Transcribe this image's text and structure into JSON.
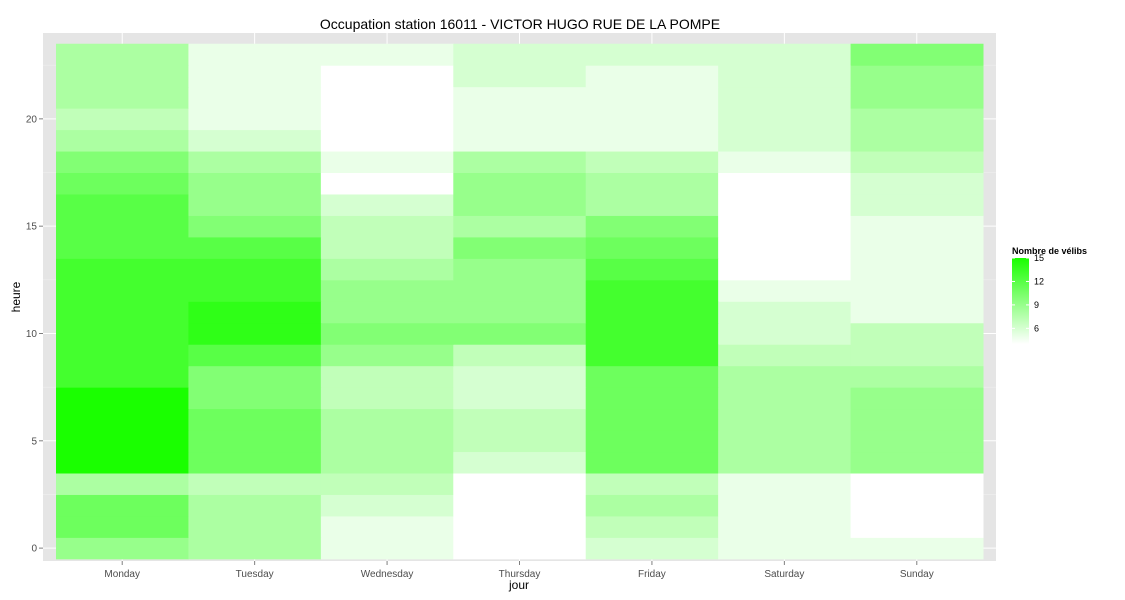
{
  "chart_data": {
    "type": "heatmap",
    "title": "Occupation station 16011 - VICTOR HUGO RUE DE LA POMPE",
    "xlabel": "jour",
    "ylabel": "heure",
    "x_categories": [
      "Monday",
      "Tuesday",
      "Wednesday",
      "Thursday",
      "Friday",
      "Saturday",
      "Sunday"
    ],
    "y_values": [
      0,
      1,
      2,
      3,
      4,
      5,
      6,
      7,
      8,
      9,
      10,
      11,
      12,
      13,
      14,
      15,
      16,
      17,
      18,
      19,
      20,
      21,
      22,
      23
    ],
    "y_ticks": [
      0,
      5,
      10,
      15,
      20
    ],
    "ylim": [
      -0.6,
      24
    ],
    "grid": true,
    "values": [
      [
        9,
        8,
        5,
        4,
        6,
        5,
        5
      ],
      [
        11,
        8,
        5,
        3,
        7,
        5,
        4
      ],
      [
        11,
        8,
        6,
        3,
        8,
        5,
        4
      ],
      [
        8,
        7,
        7,
        4,
        7,
        5,
        4
      ],
      [
        15,
        11,
        8,
        6,
        11,
        8,
        9
      ],
      [
        15,
        11,
        8,
        7,
        11,
        8,
        9
      ],
      [
        15,
        11,
        8,
        7,
        11,
        8,
        9
      ],
      [
        15,
        10,
        7,
        6,
        11,
        8,
        9
      ],
      [
        13,
        10,
        7,
        6,
        11,
        8,
        8
      ],
      [
        13,
        12,
        9,
        7,
        13,
        7,
        7
      ],
      [
        13,
        14,
        10,
        10,
        13,
        6,
        7
      ],
      [
        13,
        14,
        9,
        9,
        13,
        6,
        5
      ],
      [
        13,
        13,
        9,
        9,
        13,
        5,
        5
      ],
      [
        13,
        13,
        8,
        9,
        12,
        4,
        5
      ],
      [
        12,
        12,
        7,
        10,
        11,
        3,
        5
      ],
      [
        12,
        10,
        7,
        8,
        10,
        2,
        5
      ],
      [
        12,
        9,
        6,
        9,
        8,
        3,
        6
      ],
      [
        11,
        9,
        4,
        9,
        8,
        4,
        6
      ],
      [
        10,
        8,
        5,
        8,
        7,
        5,
        7
      ],
      [
        8,
        6,
        4,
        5,
        5,
        6,
        8
      ],
      [
        7,
        5,
        2,
        5,
        5,
        6,
        8
      ],
      [
        8,
        5,
        3,
        5,
        5,
        6,
        9
      ],
      [
        8,
        5,
        4,
        6,
        5,
        6,
        9
      ],
      [
        8,
        5,
        5,
        6,
        6,
        6,
        10
      ]
    ],
    "color_min": 4,
    "color_max": 15,
    "color_low": "#ffffff",
    "color_high": "#1aff00",
    "legend": {
      "title": "Nombre de vélibs",
      "ticks": [
        15,
        12,
        9,
        6
      ],
      "placement": "right"
    }
  }
}
